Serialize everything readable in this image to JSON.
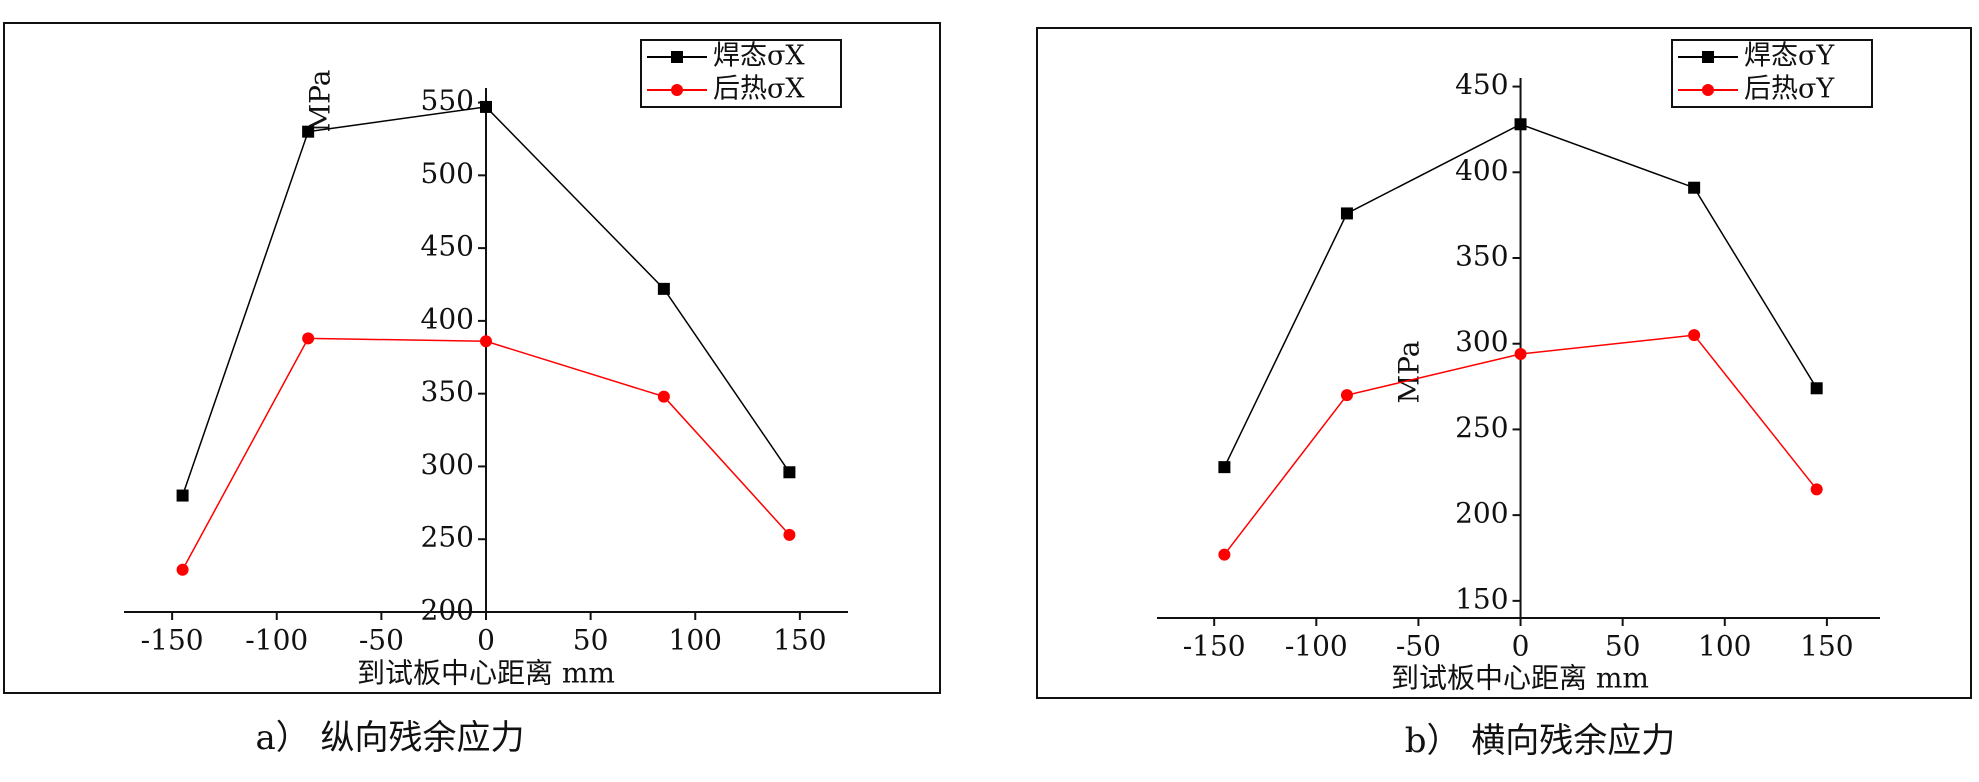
{
  "chart_data": [
    {
      "type": "line",
      "caption": "a） 纵向残余应力",
      "x_label": "到试板中心距离 mm",
      "y_label": "MPa",
      "x": [
        -145,
        -85,
        0,
        85,
        145
      ],
      "xlim": [
        -173,
        173
      ],
      "xticks": [
        -150,
        -100,
        -50,
        0,
        50,
        100,
        150
      ],
      "ylim": [
        200,
        560
      ],
      "yticks": [
        200,
        250,
        300,
        350,
        400,
        450,
        500,
        550
      ],
      "legend": "upper right",
      "series": [
        {
          "name": "焊态σX",
          "color": "#000000",
          "marker": "square",
          "values": [
            280,
            530,
            547,
            422,
            296
          ]
        },
        {
          "name": "后热σX",
          "color": "#ff0000",
          "marker": "circle",
          "values": [
            229,
            388,
            386,
            348,
            253
          ]
        }
      ]
    },
    {
      "type": "line",
      "caption": "b） 横向残余应力",
      "x_label": "到试板中心距离 mm",
      "y_label": "MPa",
      "x": [
        -145,
        -85,
        0,
        85,
        145
      ],
      "xlim": [
        -178,
        176
      ],
      "xticks": [
        -150,
        -100,
        -50,
        0,
        50,
        100,
        150
      ],
      "ylim": [
        140,
        455
      ],
      "yticks": [
        150,
        200,
        250,
        300,
        350,
        400,
        450
      ],
      "legend": "upper right",
      "series": [
        {
          "name": "焊态σY",
          "color": "#000000",
          "marker": "square",
          "values": [
            228,
            376,
            428,
            391,
            274
          ]
        },
        {
          "name": "后热σY",
          "color": "#ff0000",
          "marker": "circle",
          "values": [
            177,
            270,
            294,
            305,
            215
          ]
        }
      ]
    }
  ]
}
